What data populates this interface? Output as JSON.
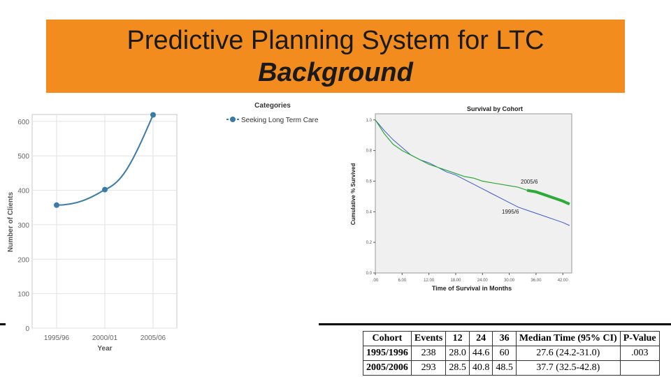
{
  "slide": {
    "title_line1": "Predictive Planning System for LTC",
    "title_line2": "Background",
    "title_bg_color": "#f28c1e"
  },
  "chart_data": [
    {
      "type": "line",
      "x": [
        "1995/96",
        "2000/01",
        "2005/06"
      ],
      "series": [
        {
          "name": "Seeking Long Term Care",
          "values": [
            357,
            402,
            619
          ],
          "color": "#3a7ca5"
        }
      ],
      "xlabel": "Year",
      "ylabel": "Number of Clients",
      "legend_title": "Categories",
      "legend_position": "top-right",
      "y_ticks": [
        "0",
        "100",
        "200",
        "300",
        "400",
        "500",
        "600"
      ],
      "ylim": [
        0,
        620
      ],
      "grid": true
    },
    {
      "type": "line",
      "title": "Survival by Cohort",
      "xlabel": "Time of Survival in Months",
      "ylabel": "Cumulative % Survived",
      "x_ticks": [
        ".00",
        "6.00",
        "12.00",
        "18.00",
        "24.00",
        "30.00",
        "36.00",
        "42.00"
      ],
      "y_ticks": [
        "0.0",
        "0.2",
        "0.4",
        "0.6",
        "0.8",
        "1.0"
      ],
      "xlim": [
        0,
        44
      ],
      "ylim": [
        0,
        1.04
      ],
      "grid": false,
      "series": [
        {
          "name": "1995/6",
          "color": "#3b5bd0",
          "x": [
            0,
            2,
            4,
            6,
            8,
            10,
            12,
            14,
            16,
            18,
            20,
            22,
            24,
            26,
            28,
            30,
            32,
            34,
            36,
            38,
            40,
            42,
            43.5
          ],
          "values": [
            1.0,
            0.93,
            0.87,
            0.82,
            0.77,
            0.74,
            0.72,
            0.69,
            0.66,
            0.64,
            0.61,
            0.58,
            0.55,
            0.52,
            0.49,
            0.46,
            0.43,
            0.41,
            0.39,
            0.37,
            0.35,
            0.33,
            0.31
          ]
        },
        {
          "name": "2005/6",
          "color": "#2eaa3a",
          "x": [
            0,
            2,
            4,
            6,
            8,
            10,
            12,
            14,
            16,
            18,
            20,
            22,
            24,
            26,
            28,
            30,
            32,
            34,
            36,
            38,
            40,
            42,
            43.5
          ],
          "values": [
            1.0,
            0.91,
            0.84,
            0.8,
            0.77,
            0.74,
            0.71,
            0.69,
            0.67,
            0.65,
            0.63,
            0.62,
            0.6,
            0.59,
            0.58,
            0.57,
            0.56,
            0.54,
            0.53,
            0.51,
            0.49,
            0.47,
            0.45
          ]
        }
      ],
      "annotations": [
        "2005/6",
        "1995/6"
      ]
    }
  ],
  "cohort_table": {
    "headers": [
      "Cohort",
      "Events",
      "12",
      "24",
      "36",
      "Median Time (95% CI)",
      "P-Value"
    ],
    "rows": [
      [
        "1995/1996",
        "238",
        "28.0",
        "44.6",
        "60",
        "27.6 (24.2-31.0)",
        ".003"
      ],
      [
        "2005/2006",
        "293",
        "28.5",
        "40.8",
        "48.5",
        "37.7 (32.5-42.8)",
        ""
      ]
    ]
  }
}
